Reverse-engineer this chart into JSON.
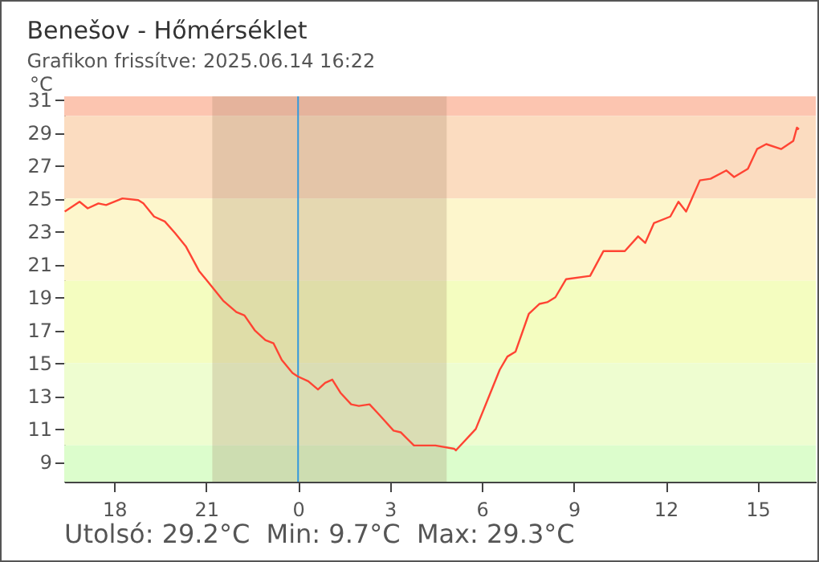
{
  "chart_data": {
    "type": "line",
    "title": "Benešov - Hőmérséklet",
    "subtitle": "Grafikon frissítve: 2025.06.14 16:22",
    "ylabel": "°C",
    "annotations": [
      "Utolsó: 29.2°C  Min: 9.7°C  Max: 29.3°C"
    ],
    "xlim": [
      "2025-06-13T16:22",
      "2025-06-14T16:54"
    ],
    "ylim": [
      7.8,
      31.2
    ],
    "xticks": [
      {
        "value": "2025-06-13T18:00",
        "label": "18"
      },
      {
        "value": "2025-06-13T21:00",
        "label": "21"
      },
      {
        "value": "2025-06-14T00:00",
        "label": "0"
      },
      {
        "value": "2025-06-14T03:00",
        "label": "3"
      },
      {
        "value": "2025-06-14T06:00",
        "label": "6"
      },
      {
        "value": "2025-06-14T09:00",
        "label": "9"
      },
      {
        "value": "2025-06-14T12:00",
        "label": "12"
      },
      {
        "value": "2025-06-14T15:00",
        "label": "15"
      }
    ],
    "yticks": [
      9,
      11,
      13,
      15,
      17,
      19,
      21,
      23,
      25,
      27,
      29,
      31
    ],
    "bands": [
      {
        "axis": "y",
        "from": 30,
        "to": 31.2,
        "color": "#fcc5b0"
      },
      {
        "axis": "y",
        "from": 25,
        "to": 30,
        "color": "#fbdcc0"
      },
      {
        "axis": "y",
        "from": 20,
        "to": 25,
        "color": "#fdf6cc"
      },
      {
        "axis": "y",
        "from": 15,
        "to": 20,
        "color": "#f4fdc0"
      },
      {
        "axis": "y",
        "from": 10,
        "to": 15,
        "color": "#eefdd0"
      },
      {
        "axis": "y",
        "from": 7.8,
        "to": 10,
        "color": "#dcfdcc"
      },
      {
        "axis": "x",
        "from": "2025-06-13T21:12",
        "to": "2025-06-14T04:51",
        "color": "#a08060"
      }
    ],
    "ref_lines": [
      {
        "axis": "x",
        "value": "2025-06-14T00:00",
        "color": "#3399dd"
      }
    ],
    "series": [
      {
        "color": "#ff4433",
        "x": [
          "2025-06-13T16:23",
          "2025-06-13T16:52",
          "2025-06-13T17:08",
          "2025-06-13T17:29",
          "2025-06-13T17:44",
          "2025-06-13T18:16",
          "2025-06-13T18:47",
          "2025-06-13T18:57",
          "2025-06-13T19:18",
          "2025-06-13T19:39",
          "2025-06-13T19:59",
          "2025-06-13T20:20",
          "2025-06-13T20:46",
          "2025-06-13T21:07",
          "2025-06-13T21:33",
          "2025-06-13T21:59",
          "2025-06-13T22:15",
          "2025-06-13T22:35",
          "2025-06-13T22:56",
          "2025-06-13T23:12",
          "2025-06-13T23:28",
          "2025-06-13T23:49",
          "2025-06-13T23:59",
          "2025-06-14T00:20",
          "2025-06-14T00:39",
          "2025-06-14T00:53",
          "2025-06-14T01:07",
          "2025-06-14T01:23",
          "2025-06-14T01:44",
          "2025-06-14T01:59",
          "2025-06-14T02:20",
          "2025-06-14T02:41",
          "2025-06-14T03:07",
          "2025-06-14T03:21",
          "2025-06-14T03:47",
          "2025-06-14T04:29",
          "2025-06-14T05:06",
          "2025-06-14T05:09",
          "2025-06-14T05:48",
          "2025-06-14T06:09",
          "2025-06-14T06:35",
          "2025-06-14T06:50",
          "2025-06-14T07:06",
          "2025-06-14T07:32",
          "2025-06-14T07:53",
          "2025-06-14T08:08",
          "2025-06-14T08:24",
          "2025-06-14T08:45",
          "2025-06-14T09:32",
          "2025-06-14T09:58",
          "2025-06-14T10:40",
          "2025-06-14T11:06",
          "2025-06-14T11:20",
          "2025-06-14T11:37",
          "2025-06-14T12:09",
          "2025-06-14T12:25",
          "2025-06-14T12:40",
          "2025-06-14T13:07",
          "2025-06-14T13:28",
          "2025-06-14T13:59",
          "2025-06-14T14:14",
          "2025-06-14T14:41",
          "2025-06-14T14:59",
          "2025-06-14T15:17",
          "2025-06-14T15:46",
          "2025-06-14T16:10",
          "2025-06-14T16:17",
          "2025-06-14T16:21"
        ],
        "values": [
          24.2,
          24.8,
          24.4,
          24.7,
          24.6,
          25.0,
          24.9,
          24.7,
          23.9,
          23.6,
          22.9,
          22.1,
          20.6,
          19.8,
          18.8,
          18.1,
          17.9,
          17.0,
          16.4,
          16.2,
          15.2,
          14.4,
          14.2,
          13.9,
          13.4,
          13.8,
          14.0,
          13.2,
          12.5,
          12.4,
          12.5,
          11.8,
          10.9,
          10.8,
          10.0,
          10.0,
          9.8,
          9.7,
          11.0,
          12.6,
          14.6,
          15.4,
          15.7,
          18.0,
          18.6,
          18.7,
          19.0,
          20.1,
          20.3,
          21.8,
          21.8,
          22.7,
          22.3,
          23.5,
          23.9,
          24.8,
          24.2,
          26.1,
          26.2,
          26.7,
          26.3,
          26.8,
          28.0,
          28.3,
          28.0,
          28.5,
          29.3,
          29.2
        ]
      }
    ]
  }
}
